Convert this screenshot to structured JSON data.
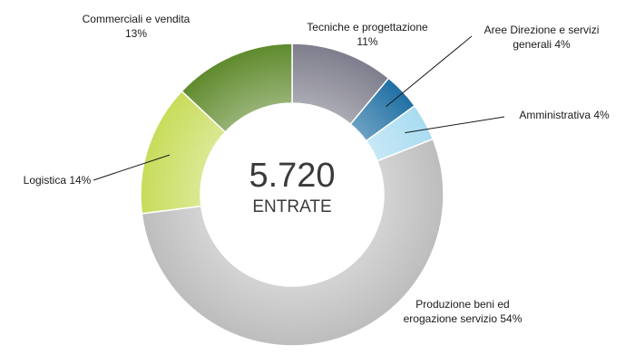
{
  "chart_data": {
    "type": "pie",
    "variant": "donut",
    "center": {
      "value": "5.720",
      "label": "ENTRATE"
    },
    "slices": [
      {
        "name": "Tecniche e progettazione",
        "value": 11,
        "color": "#7e7d8c",
        "label_lines": [
          "Tecniche e progettazione",
          "11%"
        ]
      },
      {
        "name": "Aree Direzione e servizi generali",
        "value": 4,
        "color": "#1f6fa3",
        "label_lines": [
          "Aree Direzione e servizi",
          "generali 4%"
        ]
      },
      {
        "name": "Amministrativa",
        "value": 4,
        "color": "#a9dcf1",
        "label_lines": [
          "Amministrativa 4%"
        ]
      },
      {
        "name": "Produzione beni ed erogazione servizio",
        "value": 54,
        "color": "#bdbdbd",
        "label_lines": [
          "Produzione beni ed",
          "erogazione servizio 54%"
        ]
      },
      {
        "name": "Logistica",
        "value": 14,
        "color": "#c8dc5a",
        "label_lines": [
          "Logistica 14%"
        ]
      },
      {
        "name": "Commerciali e vendita",
        "value": 13,
        "color": "#5f8a2c",
        "label_lines": [
          "Commerciali e vendita",
          "13%"
        ]
      }
    ]
  }
}
